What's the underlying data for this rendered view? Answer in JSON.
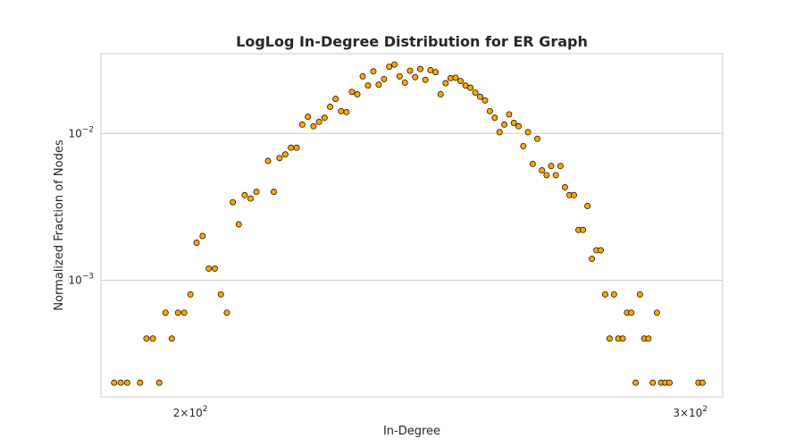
{
  "chart_data": {
    "type": "scatter",
    "title": "LogLog In-Degree Distribution for ER Graph",
    "xlabel": "In-Degree",
    "ylabel": "Normalized Fraction of Nodes",
    "xscale": "log",
    "yscale": "log",
    "xlim": [
      186,
      308
    ],
    "ylim": [
      0.00016,
      0.035
    ],
    "grid": "y-major",
    "x_ticks": [
      {
        "value": 200,
        "base": "2×10",
        "exp": "2"
      },
      {
        "value": 300,
        "base": "3×10",
        "exp": "2"
      }
    ],
    "y_ticks": [
      {
        "value": 0.001,
        "base": "10",
        "exp": "−3"
      },
      {
        "value": 0.01,
        "base": "10",
        "exp": "−2"
      }
    ],
    "marker_color": "#ffa500",
    "marker_edge": "#000000",
    "points": [
      [
        188,
        0.0002
      ],
      [
        189,
        0.0002
      ],
      [
        190,
        0.0002
      ],
      [
        192,
        0.0002
      ],
      [
        193,
        0.0004
      ],
      [
        194,
        0.0004
      ],
      [
        195,
        0.0002
      ],
      [
        196,
        0.0006
      ],
      [
        197,
        0.0004
      ],
      [
        198,
        0.0006
      ],
      [
        199,
        0.0006
      ],
      [
        200,
        0.0008
      ],
      [
        201,
        0.0018
      ],
      [
        202,
        0.002
      ],
      [
        203,
        0.0012
      ],
      [
        204,
        0.0012
      ],
      [
        205,
        0.0008
      ],
      [
        206,
        0.0006
      ],
      [
        207,
        0.0034
      ],
      [
        208,
        0.0024
      ],
      [
        209,
        0.0038
      ],
      [
        210,
        0.0036
      ],
      [
        211,
        0.004
      ],
      [
        213,
        0.0065
      ],
      [
        214,
        0.004
      ],
      [
        215,
        0.0068
      ],
      [
        216,
        0.0072
      ],
      [
        217,
        0.008
      ],
      [
        218,
        0.008
      ],
      [
        219,
        0.0115
      ],
      [
        220,
        0.013
      ],
      [
        221,
        0.0112
      ],
      [
        222,
        0.012
      ],
      [
        223,
        0.0128
      ],
      [
        224,
        0.0152
      ],
      [
        225,
        0.0172
      ],
      [
        226,
        0.0142
      ],
      [
        227,
        0.014
      ],
      [
        228,
        0.0192
      ],
      [
        229,
        0.0185
      ],
      [
        230,
        0.0245
      ],
      [
        231,
        0.0212
      ],
      [
        232,
        0.0265
      ],
      [
        233,
        0.0215
      ],
      [
        234,
        0.0235
      ],
      [
        235,
        0.0285
      ],
      [
        236,
        0.0295
      ],
      [
        237,
        0.0245
      ],
      [
        238,
        0.0222
      ],
      [
        239,
        0.0268
      ],
      [
        240,
        0.0242
      ],
      [
        241,
        0.0275
      ],
      [
        242,
        0.0232
      ],
      [
        243,
        0.027
      ],
      [
        244,
        0.0262
      ],
      [
        245,
        0.0185
      ],
      [
        246,
        0.022
      ],
      [
        247,
        0.0238
      ],
      [
        248,
        0.024
      ],
      [
        249,
        0.0228
      ],
      [
        250,
        0.0212
      ],
      [
        251,
        0.0205
      ],
      [
        252,
        0.019
      ],
      [
        253,
        0.0178
      ],
      [
        254,
        0.0168
      ],
      [
        255,
        0.0142
      ],
      [
        256,
        0.0128
      ],
      [
        257,
        0.0102
      ],
      [
        258,
        0.0115
      ],
      [
        259,
        0.0135
      ],
      [
        260,
        0.0118
      ],
      [
        261,
        0.0112
      ],
      [
        262,
        0.0082
      ],
      [
        263,
        0.0102
      ],
      [
        264,
        0.0062
      ],
      [
        265,
        0.0092
      ],
      [
        266,
        0.0056
      ],
      [
        267,
        0.0052
      ],
      [
        268,
        0.006
      ],
      [
        269,
        0.0052
      ],
      [
        270,
        0.006
      ],
      [
        271,
        0.0043
      ],
      [
        272,
        0.0038
      ],
      [
        273,
        0.0038
      ],
      [
        274,
        0.0022
      ],
      [
        275,
        0.0022
      ],
      [
        276,
        0.0032
      ],
      [
        277,
        0.0014
      ],
      [
        278,
        0.0016
      ],
      [
        279,
        0.0016
      ],
      [
        280,
        0.0008
      ],
      [
        281,
        0.0004
      ],
      [
        282,
        0.0008
      ],
      [
        283,
        0.0004
      ],
      [
        284,
        0.0004
      ],
      [
        285,
        0.0006
      ],
      [
        286,
        0.0006
      ],
      [
        287,
        0.0002
      ],
      [
        288,
        0.0008
      ],
      [
        289,
        0.0004
      ],
      [
        290,
        0.0004
      ],
      [
        291,
        0.0002
      ],
      [
        292,
        0.0006
      ],
      [
        293,
        0.0002
      ],
      [
        294,
        0.0002
      ],
      [
        295,
        0.0002
      ],
      [
        302,
        0.0002
      ],
      [
        303,
        0.0002
      ]
    ]
  }
}
